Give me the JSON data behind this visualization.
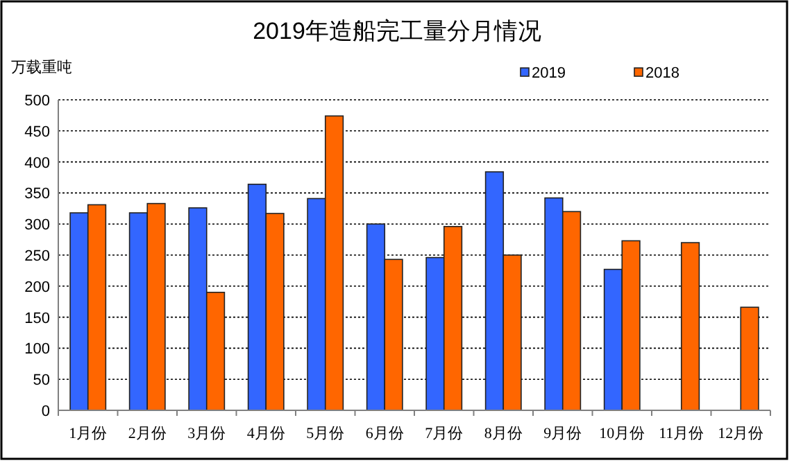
{
  "chart_data": {
    "type": "bar",
    "title": "2019年造船完工量分月情况",
    "ylabel": "万载重吨",
    "categories": [
      "1月份",
      "2月份",
      "3月份",
      "4月份",
      "5月份",
      "6月份",
      "7月份",
      "8月份",
      "9月份",
      "10月份",
      "11月份",
      "12月份"
    ],
    "series": [
      {
        "name": "2019",
        "color": "#3366ff",
        "values": [
          318,
          318,
          326,
          364,
          341,
          300,
          246,
          384,
          342,
          227,
          null,
          null
        ]
      },
      {
        "name": "2018",
        "color": "#ff6600",
        "values": [
          331,
          333,
          190,
          317,
          474,
          243,
          296,
          250,
          320,
          273,
          270,
          166
        ]
      }
    ],
    "ylim": [
      0,
      500
    ],
    "yticks": [
      0,
      50,
      100,
      150,
      200,
      250,
      300,
      350,
      400,
      450,
      500
    ],
    "grid": "y",
    "legend": "top right"
  }
}
